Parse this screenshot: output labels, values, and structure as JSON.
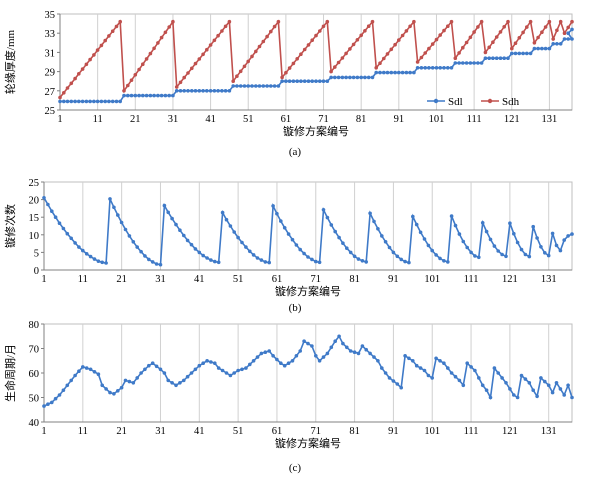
{
  "panels": [
    {
      "id": "a",
      "caption": "(a)",
      "chart_data": {
        "type": "line",
        "ylabel": "轮缘厚度/mm",
        "xlabel": "镟修方案编号",
        "ylim": [
          25,
          35
        ],
        "yticks": [
          25,
          27,
          29,
          31,
          33,
          35
        ],
        "xlim": [
          1,
          137
        ],
        "xticks": [
          1,
          11,
          21,
          31,
          41,
          51,
          61,
          71,
          81,
          91,
          101,
          111,
          121,
          131
        ],
        "grid": "vertical",
        "legend": "bottom-right",
        "series_spec": [
          {
            "name": "Sdl",
            "color": "#3f7ac8",
            "kind": "steps",
            "segments": [
              [
                1,
                17,
                25.9
              ],
              [
                18,
                31,
                26.5
              ],
              [
                32,
                46,
                27.0
              ],
              [
                47,
                59,
                27.5
              ],
              [
                60,
                72,
                28.0
              ],
              [
                73,
                84,
                28.4
              ],
              [
                85,
                95,
                28.9
              ],
              [
                96,
                105,
                29.4
              ],
              [
                106,
                113,
                29.9
              ],
              [
                114,
                120,
                30.4
              ],
              [
                121,
                126,
                30.9
              ],
              [
                127,
                131,
                31.4
              ],
              [
                132,
                134,
                31.9
              ],
              [
                135,
                137,
                32.4
              ]
            ],
            "tail": [
              [
                136,
                33.0
              ],
              [
                137,
                33.4
              ]
            ]
          },
          {
            "name": "Sdh",
            "color": "#c0504d",
            "kind": "sawtooth",
            "segments": [
              [
                1,
                17,
                26.3,
                34.2
              ],
              [
                18,
                31,
                27.0,
                34.2
              ],
              [
                32,
                46,
                27.4,
                34.2
              ],
              [
                47,
                59,
                28.0,
                34.2
              ],
              [
                60,
                72,
                28.4,
                34.2
              ],
              [
                73,
                84,
                29.0,
                34.2
              ],
              [
                85,
                95,
                29.4,
                34.2
              ],
              [
                96,
                105,
                30.0,
                34.2
              ],
              [
                106,
                113,
                30.4,
                34.2
              ],
              [
                114,
                120,
                31.0,
                34.2
              ],
              [
                121,
                126,
                31.4,
                34.2
              ],
              [
                127,
                131,
                32.0,
                34.2
              ],
              [
                132,
                134,
                32.4,
                34.2
              ],
              [
                135,
                137,
                33.0,
                34.2
              ]
            ]
          }
        ]
      }
    },
    {
      "id": "b",
      "caption": "(b)",
      "chart_data": {
        "type": "line",
        "ylabel": "镟修次数",
        "xlabel": "镟修方案编号",
        "ylim": [
          0,
          25
        ],
        "yticks": [
          0,
          5,
          10,
          15,
          20,
          25
        ],
        "xlim": [
          1,
          137
        ],
        "xticks": [
          1,
          11,
          21,
          31,
          41,
          51,
          61,
          71,
          81,
          91,
          101,
          111,
          121,
          131
        ],
        "grid": "vertical",
        "series_spec": [
          {
            "name": "",
            "color": "#3f7ac8",
            "kind": "decay",
            "segments": [
              [
                1,
                17,
                20.5,
                2.0
              ],
              [
                18,
                31,
                20.2,
                1.5
              ],
              [
                32,
                46,
                18.3,
                2.2
              ],
              [
                47,
                59,
                16.3,
                2.1
              ],
              [
                60,
                72,
                18.2,
                2.2
              ],
              [
                73,
                84,
                17.1,
                2.3
              ],
              [
                85,
                95,
                16.1,
                2.1
              ],
              [
                96,
                105,
                15.2,
                2.3
              ],
              [
                106,
                113,
                15.3,
                3.6
              ],
              [
                114,
                120,
                13.4,
                3.9
              ],
              [
                121,
                126,
                13.3,
                3.8
              ],
              [
                127,
                131,
                12.3,
                4.1
              ],
              [
                132,
                134,
                10.4,
                5.5
              ],
              [
                135,
                137,
                8.5,
                10.2
              ]
            ]
          }
        ]
      }
    },
    {
      "id": "c",
      "caption": "(c)",
      "chart_data": {
        "type": "line",
        "ylabel": "生命周期/月",
        "xlabel": "镟修方案编号",
        "ylim": [
          40,
          80
        ],
        "yticks": [
          40,
          50,
          60,
          70,
          80
        ],
        "xlim": [
          1,
          137
        ],
        "xticks": [
          1,
          11,
          21,
          31,
          41,
          51,
          61,
          71,
          81,
          91,
          101,
          111,
          121,
          131
        ],
        "grid": "vertical",
        "series_spec": [
          {
            "name": "",
            "color": "#3f7ac8",
            "kind": "keypoints",
            "points": [
              [
                1,
                46.5
              ],
              [
                3,
                48
              ],
              [
                5,
                51
              ],
              [
                7,
                55
              ],
              [
                9,
                59
              ],
              [
                11,
                62.5
              ],
              [
                13,
                61.5
              ],
              [
                15,
                59.5
              ],
              [
                16,
                55
              ],
              [
                18,
                52
              ],
              [
                19,
                51.5
              ],
              [
                21,
                54
              ],
              [
                22,
                57
              ],
              [
                24,
                56
              ],
              [
                26,
                60
              ],
              [
                28,
                63
              ],
              [
                29,
                64
              ],
              [
                31,
                61.5
              ],
              [
                32,
                60
              ],
              [
                33,
                57
              ],
              [
                35,
                55
              ],
              [
                37,
                57
              ],
              [
                39,
                60
              ],
              [
                41,
                63
              ],
              [
                43,
                65
              ],
              [
                45,
                64
              ],
              [
                46,
                62
              ],
              [
                48,
                60
              ],
              [
                49,
                59
              ],
              [
                51,
                61
              ],
              [
                53,
                62
              ],
              [
                55,
                65
              ],
              [
                57,
                68
              ],
              [
                59,
                69
              ],
              [
                60,
                67
              ],
              [
                62,
                64
              ],
              [
                63,
                63
              ],
              [
                65,
                65
              ],
              [
                67,
                69
              ],
              [
                68,
                73
              ],
              [
                70,
                71
              ],
              [
                71,
                67
              ],
              [
                72,
                65
              ],
              [
                74,
                68
              ],
              [
                76,
                73
              ],
              [
                77,
                75
              ],
              [
                78,
                72
              ],
              [
                80,
                69
              ],
              [
                82,
                68
              ],
              [
                83,
                71
              ],
              [
                85,
                68
              ],
              [
                87,
                65
              ],
              [
                88,
                62
              ],
              [
                90,
                58
              ],
              [
                92,
                55.5
              ],
              [
                93,
                54
              ],
              [
                94,
                67
              ],
              [
                96,
                65
              ],
              [
                97,
                63
              ],
              [
                99,
                61
              ],
              [
                100,
                59
              ],
              [
                101,
                58
              ],
              [
                102,
                66
              ],
              [
                104,
                64
              ],
              [
                106,
                60
              ],
              [
                108,
                57
              ],
              [
                109,
                55
              ],
              [
                110,
                64
              ],
              [
                112,
                61
              ],
              [
                114,
                55
              ],
              [
                115,
                53
              ],
              [
                116,
                50
              ],
              [
                117,
                62
              ],
              [
                119,
                58
              ],
              [
                120,
                56
              ],
              [
                122,
                51
              ],
              [
                123,
                50
              ],
              [
                124,
                59
              ],
              [
                126,
                56
              ],
              [
                127,
                53
              ],
              [
                128,
                50.5
              ],
              [
                129,
                58
              ],
              [
                131,
                55
              ],
              [
                132,
                52
              ],
              [
                133,
                56
              ],
              [
                135,
                51
              ],
              [
                136,
                55
              ],
              [
                137,
                50
              ],
              [
                138,
                54
              ],
              [
                139,
                51
              ],
              [
                140,
                52
              ]
            ]
          }
        ]
      }
    }
  ]
}
